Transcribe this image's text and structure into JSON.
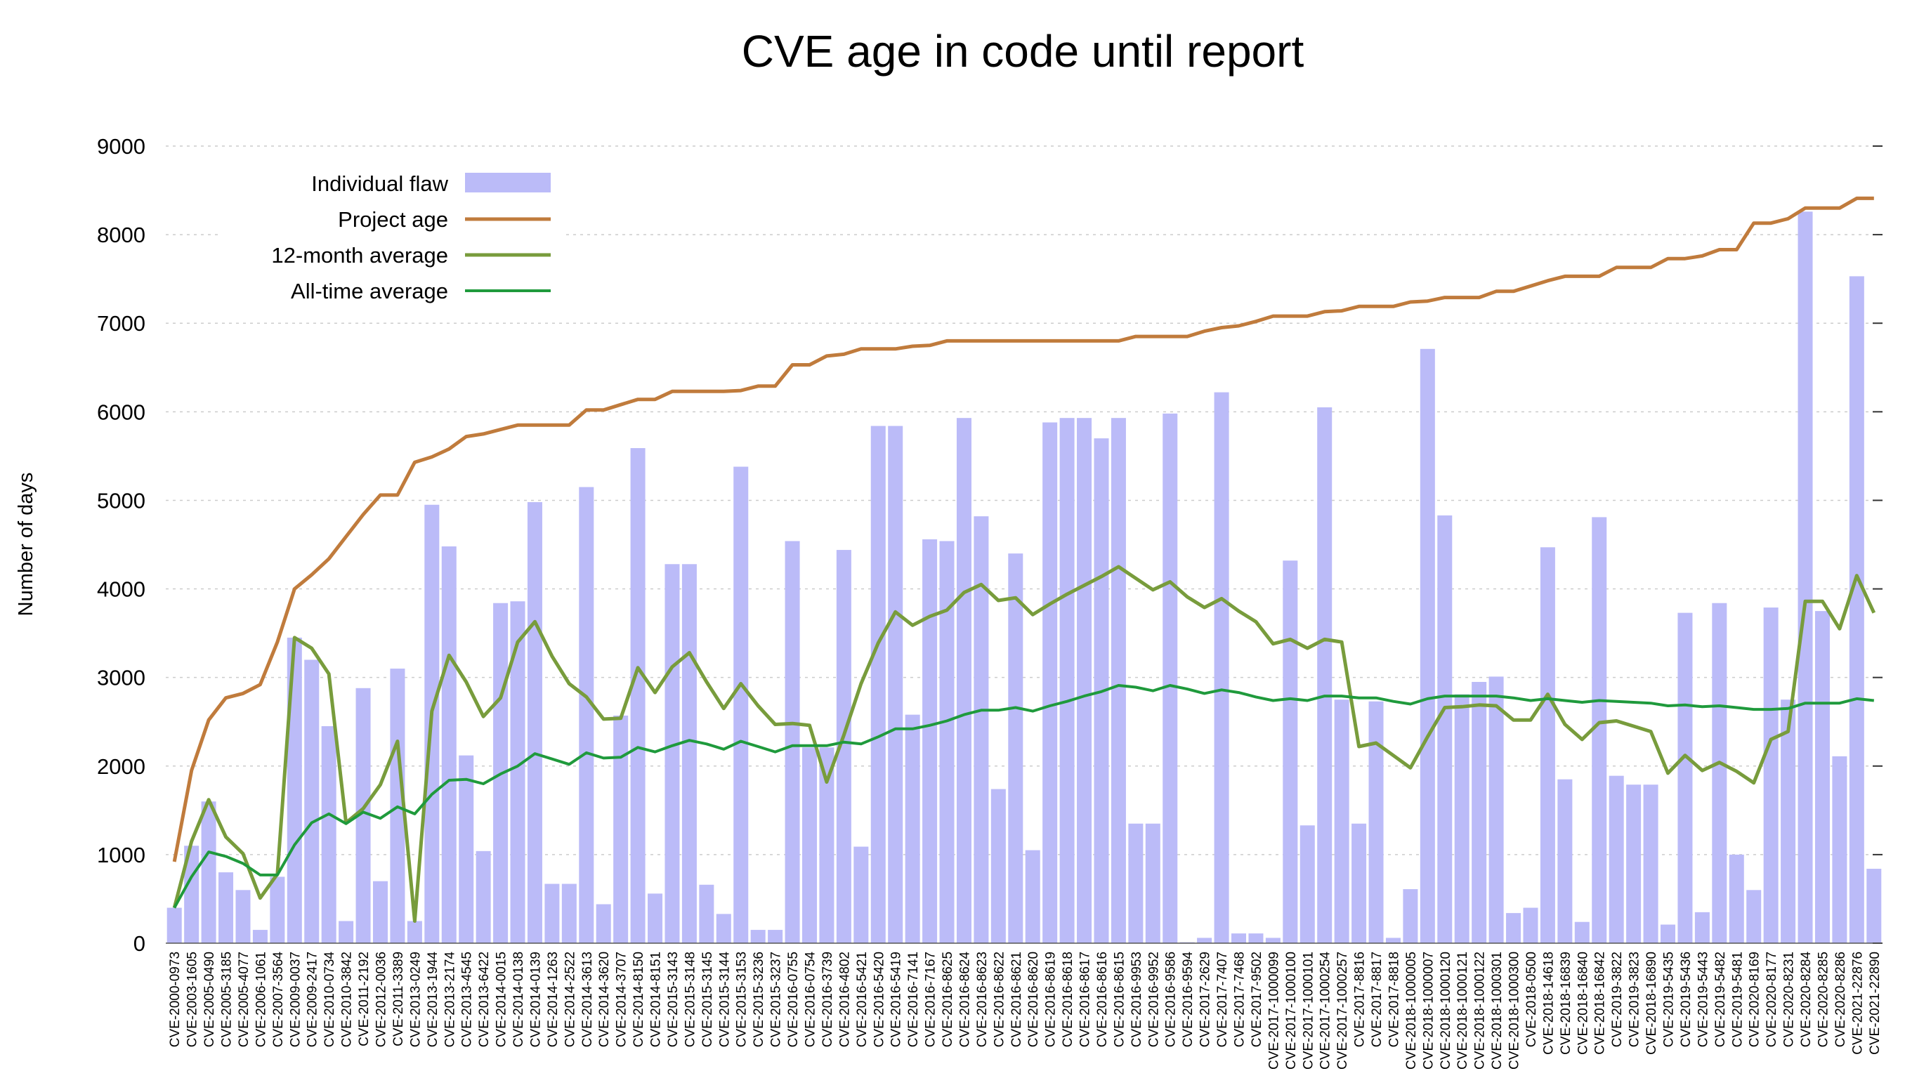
{
  "chart_data": {
    "type": "bar",
    "title": "CVE age in code until report",
    "xlabel": "",
    "ylabel": "Number of days",
    "ylim": [
      0,
      9000
    ],
    "yticks": [
      0,
      1000,
      2000,
      3000,
      4000,
      5000,
      6000,
      7000,
      8000,
      9000
    ],
    "grid": true,
    "legend_position": "top-left",
    "colors": {
      "bars": "#bbbbf8",
      "project_age": "#c07b3c",
      "twelve_month": "#789c3c",
      "all_time": "#1f9a3c"
    },
    "categories": [
      "CVE-2000-0973",
      "CVE-2003-1605",
      "CVE-2005-0490",
      "CVE-2005-3185",
      "CVE-2005-4077",
      "CVE-2006-1061",
      "CVE-2007-3564",
      "CVE-2009-0037",
      "CVE-2009-2417",
      "CVE-2010-0734",
      "CVE-2010-3842",
      "CVE-2011-2192",
      "CVE-2012-0036",
      "CVE-2011-3389",
      "CVE-2013-0249",
      "CVE-2013-1944",
      "CVE-2013-2174",
      "CVE-2013-4545",
      "CVE-2013-6422",
      "CVE-2014-0015",
      "CVE-2014-0138",
      "CVE-2014-0139",
      "CVE-2014-1263",
      "CVE-2014-2522",
      "CVE-2014-3613",
      "CVE-2014-3620",
      "CVE-2014-3707",
      "CVE-2014-8150",
      "CVE-2014-8151",
      "CVE-2015-3143",
      "CVE-2015-3148",
      "CVE-2015-3145",
      "CVE-2015-3144",
      "CVE-2015-3153",
      "CVE-2015-3236",
      "CVE-2015-3237",
      "CVE-2016-0755",
      "CVE-2016-0754",
      "CVE-2016-3739",
      "CVE-2016-4802",
      "CVE-2016-5421",
      "CVE-2016-5420",
      "CVE-2016-5419",
      "CVE-2016-7141",
      "CVE-2016-7167",
      "CVE-2016-8625",
      "CVE-2016-8624",
      "CVE-2016-8623",
      "CVE-2016-8622",
      "CVE-2016-8621",
      "CVE-2016-8620",
      "CVE-2016-8619",
      "CVE-2016-8618",
      "CVE-2016-8617",
      "CVE-2016-8616",
      "CVE-2016-8615",
      "CVE-2016-9953",
      "CVE-2016-9952",
      "CVE-2016-9586",
      "CVE-2016-9594",
      "CVE-2017-2629",
      "CVE-2017-7407",
      "CVE-2017-7468",
      "CVE-2017-9502",
      "CVE-2017-1000099",
      "CVE-2017-1000100",
      "CVE-2017-1000101",
      "CVE-2017-1000254",
      "CVE-2017-1000257",
      "CVE-2017-8816",
      "CVE-2017-8817",
      "CVE-2017-8818",
      "CVE-2018-1000005",
      "CVE-2018-1000007",
      "CVE-2018-1000120",
      "CVE-2018-1000121",
      "CVE-2018-1000122",
      "CVE-2018-1000301",
      "CVE-2018-1000300",
      "CVE-2018-0500",
      "CVE-2018-14618",
      "CVE-2018-16839",
      "CVE-2018-16840",
      "CVE-2018-16842",
      "CVE-2019-3822",
      "CVE-2019-3823",
      "CVE-2018-16890",
      "CVE-2019-5435",
      "CVE-2019-5436",
      "CVE-2019-5443",
      "CVE-2019-5482",
      "CVE-2019-5481",
      "CVE-2020-8169",
      "CVE-2020-8177",
      "CVE-2020-8231",
      "CVE-2020-8284",
      "CVE-2020-8285",
      "CVE-2020-8286",
      "CVE-2021-22876",
      "CVE-2021-22890"
    ],
    "series": [
      {
        "name": "Individual flaw",
        "type": "bar",
        "values": [
          400,
          1100,
          1600,
          800,
          600,
          150,
          750,
          3450,
          3200,
          2450,
          250,
          2880,
          700,
          3100,
          250,
          4950,
          4480,
          2120,
          1040,
          3840,
          3860,
          4980,
          670,
          670,
          5150,
          440,
          2570,
          5590,
          560,
          4280,
          4280,
          660,
          330,
          5380,
          150,
          150,
          4540,
          2210,
          2210,
          4440,
          1090,
          5840,
          5840,
          2580,
          4560,
          4540,
          5930,
          4820,
          1740,
          4400,
          1050,
          5880,
          5930,
          5930,
          5700,
          5930,
          1350,
          1350,
          5980,
          10,
          60,
          6220,
          110,
          110,
          60,
          4320,
          1330,
          6050,
          2750,
          1350,
          2730,
          60,
          610,
          6710,
          4830,
          2810,
          2950,
          3010,
          340,
          400,
          4470,
          1850,
          240,
          4810,
          1890,
          1790,
          1790,
          210,
          3730,
          350,
          3840,
          1000,
          600,
          3790,
          2750,
          8260,
          3750,
          2110,
          7530,
          840
        ]
      },
      {
        "name": "Project age",
        "type": "line",
        "values": [
          920,
          1950,
          2520,
          2770,
          2820,
          2920,
          3400,
          4000,
          4160,
          4340,
          4590,
          4840,
          5060,
          5060,
          5430,
          5490,
          5580,
          5720,
          5750,
          5800,
          5850,
          5850,
          5850,
          5850,
          6020,
          6020,
          6080,
          6140,
          6140,
          6230,
          6230,
          6230,
          6230,
          6240,
          6290,
          6290,
          6530,
          6530,
          6630,
          6650,
          6710,
          6710,
          6710,
          6740,
          6750,
          6800,
          6800,
          6800,
          6800,
          6800,
          6800,
          6800,
          6800,
          6800,
          6800,
          6800,
          6850,
          6850,
          6850,
          6850,
          6910,
          6950,
          6970,
          7020,
          7080,
          7080,
          7080,
          7130,
          7140,
          7190,
          7190,
          7190,
          7240,
          7250,
          7290,
          7290,
          7290,
          7360,
          7360,
          7420,
          7480,
          7530,
          7530,
          7530,
          7630,
          7630,
          7630,
          7730,
          7730,
          7760,
          7830,
          7830,
          8130,
          8130,
          8180,
          8300,
          8300,
          8300,
          8410,
          8410
        ]
      },
      {
        "name": "12-month average",
        "type": "line",
        "values": [
          400,
          1150,
          1620,
          1200,
          1010,
          510,
          780,
          3450,
          3330,
          3040,
          1360,
          1520,
          1790,
          2280,
          250,
          2620,
          3250,
          2950,
          2560,
          2770,
          3400,
          3630,
          3240,
          2930,
          2780,
          2530,
          2540,
          3110,
          2830,
          3120,
          3280,
          2950,
          2650,
          2930,
          2680,
          2470,
          2480,
          2460,
          1820,
          2350,
          2930,
          3390,
          3740,
          3590,
          3690,
          3760,
          3960,
          4050,
          3870,
          3900,
          3710,
          3830,
          3940,
          4040,
          4140,
          4250,
          4120,
          3990,
          4080,
          3910,
          3790,
          3890,
          3750,
          3630,
          3380,
          3430,
          3330,
          3430,
          3400,
          2220,
          2260,
          2120,
          1980,
          2330,
          2660,
          2670,
          2690,
          2680,
          2520,
          2520,
          2810,
          2470,
          2300,
          2490,
          2510,
          2450,
          2390,
          1920,
          2120,
          1950,
          2040,
          1940,
          1810,
          2300,
          2390,
          3860,
          3860,
          3550,
          4150,
          3730
        ]
      },
      {
        "name": "All-time average",
        "type": "line",
        "values": [
          400,
          750,
          1030,
          980,
          900,
          770,
          770,
          1110,
          1360,
          1460,
          1350,
          1480,
          1410,
          1540,
          1460,
          1680,
          1840,
          1850,
          1800,
          1910,
          2000,
          2140,
          2080,
          2020,
          2150,
          2090,
          2100,
          2210,
          2160,
          2230,
          2290,
          2250,
          2190,
          2280,
          2220,
          2160,
          2230,
          2230,
          2230,
          2270,
          2250,
          2330,
          2420,
          2420,
          2460,
          2510,
          2580,
          2630,
          2630,
          2660,
          2620,
          2680,
          2730,
          2790,
          2840,
          2910,
          2890,
          2850,
          2910,
          2870,
          2820,
          2860,
          2830,
          2780,
          2740,
          2760,
          2740,
          2790,
          2790,
          2770,
          2770,
          2730,
          2700,
          2760,
          2790,
          2790,
          2790,
          2790,
          2770,
          2740,
          2760,
          2740,
          2720,
          2740,
          2730,
          2720,
          2710,
          2680,
          2690,
          2670,
          2680,
          2660,
          2640,
          2640,
          2650,
          2710,
          2710,
          2710,
          2760,
          2740
        ]
      }
    ]
  }
}
